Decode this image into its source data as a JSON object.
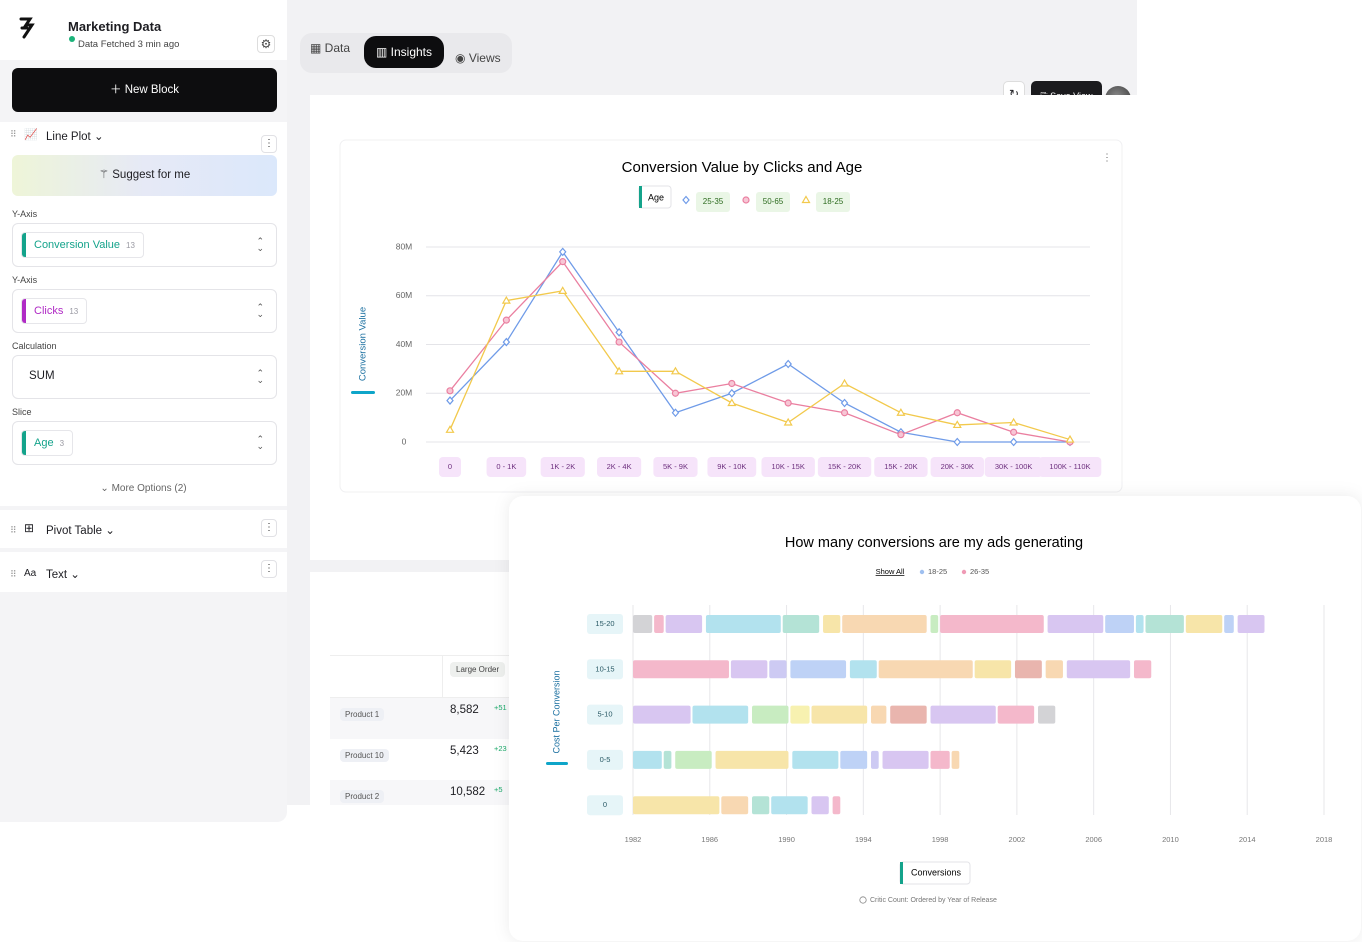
{
  "app": {
    "title": "Marketing Data",
    "status": "Data Fetched 3 min ago"
  },
  "sidebar": {
    "new_block": "New Block",
    "blocks": [
      {
        "label": "Line Plot"
      },
      {
        "label": "Pivot Table"
      },
      {
        "label": "Text"
      }
    ],
    "suggest": "Suggest for me",
    "fields": [
      {
        "label": "Y-Axis",
        "value": "Conversion Value",
        "count": 13,
        "color": "#14a38b"
      },
      {
        "label": "Y-Axis",
        "value": "Clicks",
        "count": 13,
        "color": "#b02bc5"
      },
      {
        "label": "Calculation",
        "value": "SUM"
      },
      {
        "label": "Slice",
        "value": "Age",
        "count": 3,
        "color": "#14a38b"
      }
    ],
    "more_options": "More Options (2)"
  },
  "tabs": [
    "Data",
    "Insights",
    "Views"
  ],
  "toolbar": {
    "save": "Save View"
  },
  "table": {
    "header": "Large Order",
    "rows": [
      [
        "Product 1",
        "8,582",
        "+51"
      ],
      [
        "Product 10",
        "5,423",
        "+23"
      ],
      [
        "Product 2",
        "10,582",
        "+5"
      ]
    ]
  },
  "chart_data": [
    {
      "type": "line",
      "title": "Conversion Value by Clicks and Age",
      "y_label": "Conversion Value",
      "legend_title": "Age",
      "categories": [
        "0",
        "0 - 1K",
        "1K - 2K",
        "2K - 4K",
        "5K - 9K",
        "9K - 10K",
        "10K - 15K",
        "15K - 20K",
        "15K - 20K",
        "20K - 30K",
        "30K - 100K",
        "100K - 110K"
      ],
      "ylim": [
        0,
        80000000
      ],
      "yticks": [
        0,
        {
          "value": 20000000,
          "label": "20M"
        },
        {
          "value": 40000000,
          "label": "40M"
        },
        {
          "value": 60000000,
          "label": "60M"
        },
        {
          "value": 80000000,
          "label": "80M"
        }
      ],
      "grid": true,
      "series": [
        {
          "name": "25-35",
          "color": "#6f9be8",
          "marker": "diamond",
          "values": [
            17000000,
            41000000,
            78000000,
            45000000,
            12000000,
            20000000,
            32000000,
            16000000,
            4000000,
            0,
            0,
            0
          ]
        },
        {
          "name": "50-65",
          "color": "#ea7fa0",
          "marker": "circle",
          "values": [
            21000000,
            50000000,
            74000000,
            41000000,
            20000000,
            24000000,
            16000000,
            12000000,
            3000000,
            12000000,
            4000000,
            0
          ]
        },
        {
          "name": "18-25",
          "color": "#f2c94c",
          "marker": "triangle",
          "values": [
            5000000,
            58000000,
            62000000,
            29000000,
            29000000,
            16000000,
            8000000,
            24000000,
            12000000,
            7000000,
            8000000,
            1000000
          ]
        }
      ]
    },
    {
      "type": "timeline",
      "title": "How many conversions are my ads generating",
      "y_label": "Cost Per Conversion",
      "x_label": "Conversions",
      "footnote": "Critic Count: Ordered by Year of Release",
      "legend": {
        "label": "Show All",
        "items": [
          {
            "name": "18-25",
            "color": "#9fc0f0"
          },
          {
            "name": "26-35",
            "color": "#ef9ab5"
          }
        ]
      },
      "xlim": [
        1982,
        2018
      ],
      "xticks": [
        1982,
        1986,
        1990,
        1994,
        1998,
        2002,
        2006,
        2010,
        2014,
        2018
      ],
      "grid": true,
      "rows": [
        {
          "category": "15-20",
          "segments": [
            {
              "start": 1982.0,
              "end": 1983.0,
              "color": "#d3d3d6"
            },
            {
              "start": 1983.1,
              "end": 1983.6,
              "color": "#f4b8cb"
            },
            {
              "start": 1983.7,
              "end": 1985.6,
              "color": "#d8c6f1"
            },
            {
              "start": 1985.8,
              "end": 1989.7,
              "color": "#b2e2ee"
            },
            {
              "start": 1989.8,
              "end": 1991.7,
              "color": "#b4e3d6"
            },
            {
              "start": 1991.9,
              "end": 1992.8,
              "color": "#f7e5a9"
            },
            {
              "start": 1992.9,
              "end": 1997.3,
              "color": "#f8d8b2"
            },
            {
              "start": 1997.5,
              "end": 1997.9,
              "color": "#c8ecc1"
            },
            {
              "start": 1998.0,
              "end": 2003.4,
              "color": "#f4b8cb"
            },
            {
              "start": 2003.6,
              "end": 2006.5,
              "color": "#d8c6f1"
            },
            {
              "start": 2006.6,
              "end": 2008.1,
              "color": "#bed2f6"
            },
            {
              "start": 2008.2,
              "end": 2008.6,
              "color": "#b2e2ee"
            },
            {
              "start": 2008.7,
              "end": 2010.7,
              "color": "#b4e3d6"
            },
            {
              "start": 2010.8,
              "end": 2012.7,
              "color": "#f7e5a9"
            },
            {
              "start": 2012.8,
              "end": 2013.3,
              "color": "#bed2f6"
            },
            {
              "start": 2013.5,
              "end": 2014.9,
              "color": "#d8c6f1"
            }
          ]
        },
        {
          "category": "10-15",
          "segments": [
            {
              "start": 1982.0,
              "end": 1987.0,
              "color": "#f4b8cb"
            },
            {
              "start": 1987.1,
              "end": 1989.0,
              "color": "#d8c6f1"
            },
            {
              "start": 1989.1,
              "end": 1990.0,
              "color": "#cdcaf3"
            },
            {
              "start": 1990.2,
              "end": 1993.1,
              "color": "#bed2f6"
            },
            {
              "start": 1993.3,
              "end": 1994.7,
              "color": "#b2e2ee"
            },
            {
              "start": 1994.8,
              "end": 1999.7,
              "color": "#f8d8b2"
            },
            {
              "start": 1999.8,
              "end": 2001.7,
              "color": "#f7e5a9"
            },
            {
              "start": 2001.9,
              "end": 2003.3,
              "color": "#e9b5ae"
            },
            {
              "start": 2003.5,
              "end": 2004.4,
              "color": "#f8d8b2"
            },
            {
              "start": 2004.6,
              "end": 2007.9,
              "color": "#d8c6f1"
            },
            {
              "start": 2008.1,
              "end": 2009.0,
              "color": "#f4b8cb"
            }
          ]
        },
        {
          "category": "5-10",
          "segments": [
            {
              "start": 1982.0,
              "end": 1985.0,
              "color": "#d8c6f1"
            },
            {
              "start": 1985.1,
              "end": 1988.0,
              "color": "#b2e2ee"
            },
            {
              "start": 1988.2,
              "end": 1990.1,
              "color": "#c8ecc1"
            },
            {
              "start": 1990.2,
              "end": 1991.2,
              "color": "#f7f1b0"
            },
            {
              "start": 1991.3,
              "end": 1994.2,
              "color": "#f7e5a9"
            },
            {
              "start": 1994.4,
              "end": 1995.2,
              "color": "#f8d8b2"
            },
            {
              "start": 1995.4,
              "end": 1997.3,
              "color": "#e9b5ae"
            },
            {
              "start": 1997.5,
              "end": 2000.9,
              "color": "#d8c6f1"
            },
            {
              "start": 2001.0,
              "end": 2002.9,
              "color": "#f4b8cb"
            },
            {
              "start": 2003.1,
              "end": 2004.0,
              "color": "#d3d3d6"
            }
          ]
        },
        {
          "category": "0-5",
          "segments": [
            {
              "start": 1982.0,
              "end": 1983.5,
              "color": "#b2e2ee"
            },
            {
              "start": 1983.6,
              "end": 1984.0,
              "color": "#b4e3d6"
            },
            {
              "start": 1984.2,
              "end": 1986.1,
              "color": "#c8ecc1"
            },
            {
              "start": 1986.3,
              "end": 1990.1,
              "color": "#f7e5a9"
            },
            {
              "start": 1990.3,
              "end": 1992.7,
              "color": "#b2e2ee"
            },
            {
              "start": 1992.8,
              "end": 1994.2,
              "color": "#bed2f6"
            },
            {
              "start": 1994.4,
              "end": 1994.8,
              "color": "#cdcaf3"
            },
            {
              "start": 1995.0,
              "end": 1997.4,
              "color": "#d8c6f1"
            },
            {
              "start": 1997.5,
              "end": 1998.5,
              "color": "#f4b8cb"
            },
            {
              "start": 1998.6,
              "end": 1999.0,
              "color": "#f8d8b2"
            }
          ]
        },
        {
          "category": "0",
          "segments": [
            {
              "start": 1982.0,
              "end": 1986.5,
              "color": "#f7e5a9"
            },
            {
              "start": 1986.6,
              "end": 1988.0,
              "color": "#f8d8b2"
            },
            {
              "start": 1988.2,
              "end": 1989.1,
              "color": "#b4e3d6"
            },
            {
              "start": 1989.2,
              "end": 1991.1,
              "color": "#b2e2ee"
            },
            {
              "start": 1991.3,
              "end": 1992.2,
              "color": "#d8c6f1"
            },
            {
              "start": 1992.4,
              "end": 1992.8,
              "color": "#f4b8cb"
            }
          ]
        }
      ]
    }
  ]
}
